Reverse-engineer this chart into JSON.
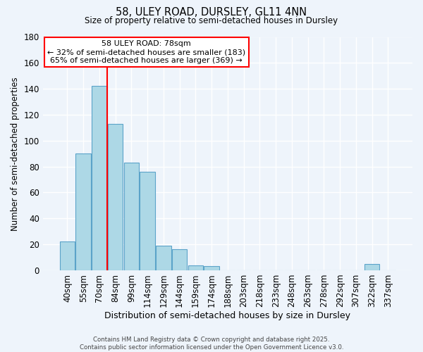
{
  "title": "58, ULEY ROAD, DURSLEY, GL11 4NN",
  "subtitle": "Size of property relative to semi-detached houses in Dursley",
  "xlabel": "Distribution of semi-detached houses by size in Dursley",
  "ylabel": "Number of semi-detached properties",
  "bar_labels": [
    "40sqm",
    "55sqm",
    "70sqm",
    "84sqm",
    "99sqm",
    "114sqm",
    "129sqm",
    "144sqm",
    "159sqm",
    "174sqm",
    "188sqm",
    "203sqm",
    "218sqm",
    "233sqm",
    "248sqm",
    "263sqm",
    "278sqm",
    "292sqm",
    "307sqm",
    "322sqm",
    "337sqm"
  ],
  "bar_values": [
    22,
    90,
    142,
    113,
    83,
    76,
    19,
    16,
    4,
    3,
    0,
    0,
    0,
    0,
    0,
    0,
    0,
    0,
    0,
    5,
    0
  ],
  "bar_color": "#add8e6",
  "bar_edge_color": "#5ba3c9",
  "ylim": [
    0,
    180
  ],
  "yticks": [
    0,
    20,
    40,
    60,
    80,
    100,
    120,
    140,
    160,
    180
  ],
  "property_label": "58 ULEY ROAD: 78sqm",
  "annotation_line1": "← 32% of semi-detached houses are smaller (183)",
  "annotation_line2": "65% of semi-detached houses are larger (369) →",
  "vline_bar_index": 2,
  "background_color": "#eef4fb",
  "grid_color": "#ffffff",
  "footer_line1": "Contains HM Land Registry data © Crown copyright and database right 2025.",
  "footer_line2": "Contains public sector information licensed under the Open Government Licence v3.0."
}
